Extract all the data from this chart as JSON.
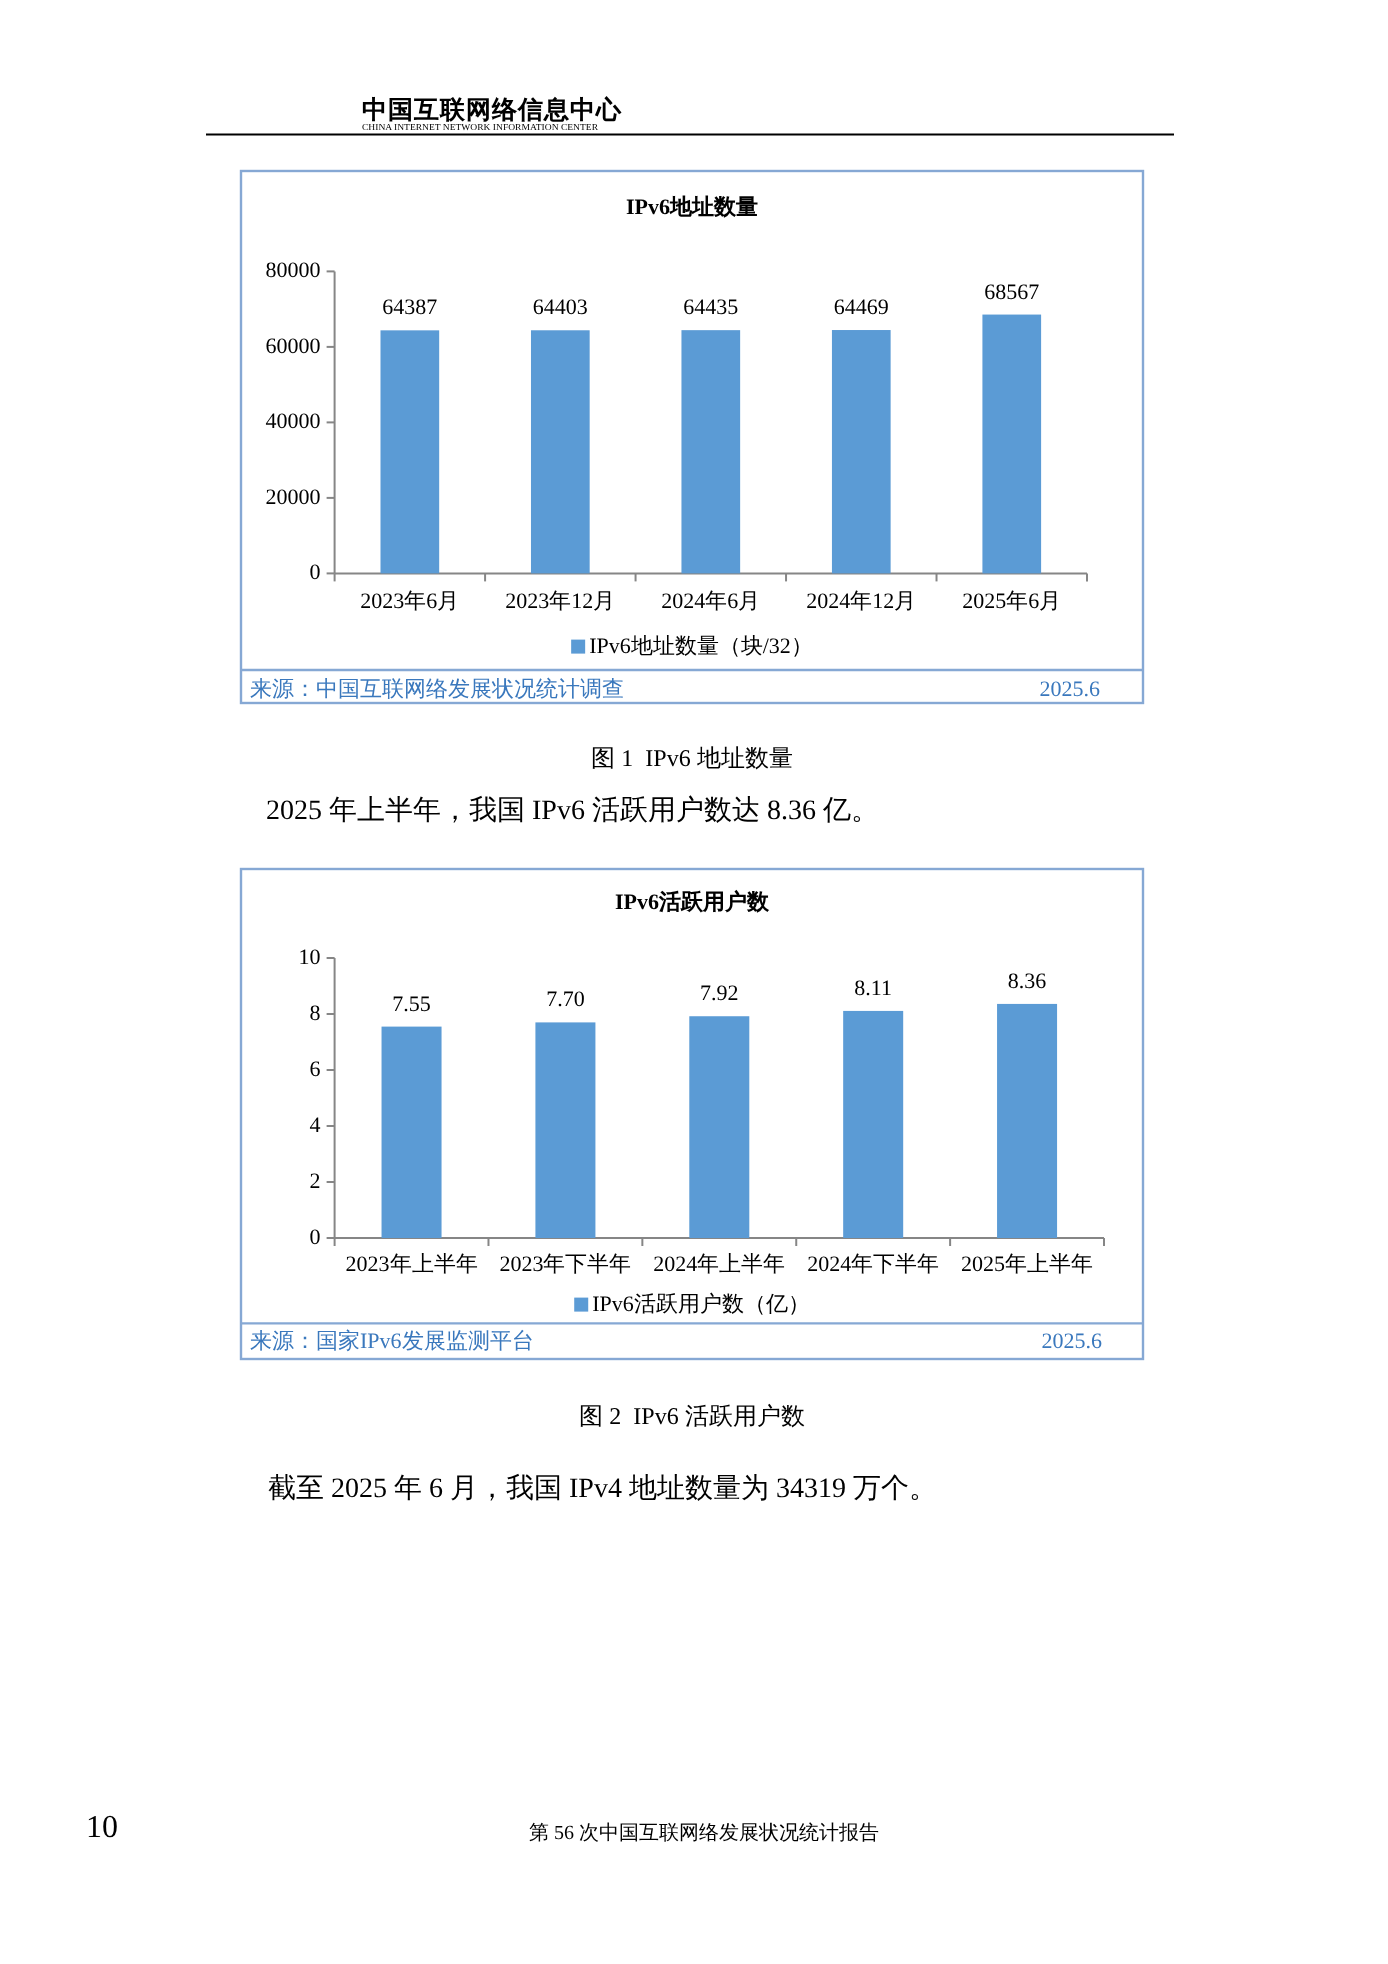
{
  "chart_data": [
    {
      "type": "bar",
      "title": "IPv6地址数量",
      "categories": [
        "2023年6月",
        "2023年12月",
        "2024年6月",
        "2024年12月",
        "2025年6月"
      ],
      "series": [
        {
          "name": "IPv6地址数量（块/32）",
          "color": "#5b9bd5",
          "values": [
            64387,
            64403,
            64435,
            64469,
            68567
          ]
        }
      ],
      "ylim": [
        0,
        80000
      ],
      "yticks": [
        0,
        20000,
        40000,
        60000,
        80000
      ],
      "data_labels": true,
      "legend": "bottom",
      "annotations": [
        "中国互联网络信息中心",
        "CHINA INTERNET NETWORK INFORMATION CENTER",
        "来源：中国互联网络发展状况统计调查",
        "2025.6",
        "图 1  IPv6 地址数量",
        "2025 年上半年，我国 IPv6 活跃用户数达 8.36 亿。"
      ]
    },
    {
      "type": "bar",
      "title": "IPv6活跃用户数",
      "categories": [
        "2023年上半年",
        "2023年下半年",
        "2024年上半年",
        "2024年下半年",
        "2025年上半年"
      ],
      "series": [
        {
          "name": "IPv6活跃用户数（亿）",
          "color": "#5b9bd5",
          "values": [
            7.55,
            7.7,
            7.92,
            8.11,
            8.36
          ],
          "value_labels": [
            "7.55",
            "7.70",
            "7.92",
            "8.11",
            "8.36"
          ]
        }
      ],
      "ylim": [
        0,
        10
      ],
      "yticks": [
        0,
        2,
        4,
        6,
        8,
        10
      ],
      "legend": "bottom",
      "annotations": [
        "来源：国家IPv6发展监测平台",
        "2025.6",
        "图 2  IPv6 活跃用户数",
        "截至 2025 年 6 月，我国 IPv4 地址数量为 34319 万个。",
        "10",
        "第 56 次中国互联网络发展状况统计报告"
      ]
    }
  ]
}
